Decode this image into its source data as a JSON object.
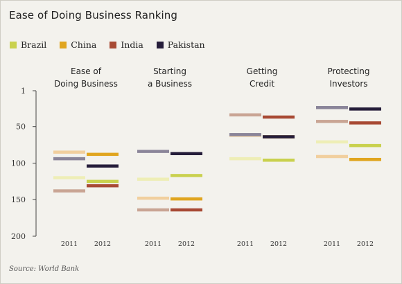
{
  "title": "Ease of Doing Business Ranking",
  "source": "Source: World Bank",
  "legend": [
    {
      "label": "Brazil",
      "color": "#c9d14e"
    },
    {
      "label": "China",
      "color": "#e0a51f"
    },
    {
      "label": "India",
      "color": "#a84a34"
    },
    {
      "label": "Pakistan",
      "color": "#251d3a"
    }
  ],
  "chart_data": {
    "type": "range-bar",
    "title": "Ease of Doing Business Ranking",
    "y_axis": {
      "min": 1,
      "max": 200,
      "inverted": true,
      "ticks": [
        1,
        50,
        100,
        150,
        200
      ]
    },
    "years": [
      "2011",
      "2012"
    ],
    "categories": [
      "Ease of Doing Business",
      "Starting a Business",
      "Getting Credit",
      "Protecting Investors"
    ],
    "category_labels": [
      [
        "Ease of",
        "Doing Business"
      ],
      [
        "Starting",
        "a Business"
      ],
      [
        "Getting",
        "Credit"
      ],
      [
        "Protecting",
        "Investors"
      ]
    ],
    "series": [
      {
        "name": "Brazil",
        "color": "#c9d14e",
        "pale_color": "#eeeeb6",
        "values_2011": [
          120,
          122,
          94,
          71
        ],
        "values_2012": [
          125,
          117,
          96,
          76
        ]
      },
      {
        "name": "China",
        "color": "#e0a51f",
        "pale_color": "#f1cf9e",
        "values_2011": [
          85,
          148,
          62,
          91
        ],
        "values_2012": [
          88,
          149,
          64,
          95
        ]
      },
      {
        "name": "India",
        "color": "#a84a34",
        "pale_color": "#c9a594",
        "values_2011": [
          138,
          164,
          34,
          43
        ],
        "values_2012": [
          131,
          164,
          37,
          45
        ]
      },
      {
        "name": "Pakistan",
        "color": "#251d3a",
        "pale_color": "#8a8599",
        "values_2011": [
          94,
          84,
          61,
          24
        ],
        "values_2012": [
          104,
          87,
          64,
          26
        ]
      }
    ]
  }
}
